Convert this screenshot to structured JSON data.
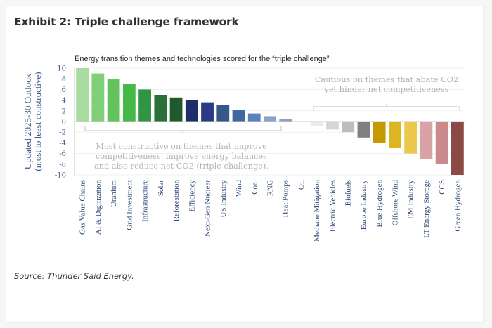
{
  "header": {
    "title": "Exhibit 2: Triple challenge framework"
  },
  "footer": {
    "source": "Source: Thunder Said Energy."
  },
  "chart_data": {
    "type": "bar",
    "title": "Energy transition themes and technologies scored for the “triple challenge”",
    "ylabel_lines": [
      "Updated 2025-30 Outlook",
      "(most to least constructive)"
    ],
    "xlabel": "",
    "ylim": [
      -10,
      10
    ],
    "yticks": [
      "10",
      "8",
      "6",
      "4",
      "2",
      "0",
      "-2",
      "-4",
      "-6",
      "-8",
      "-10"
    ],
    "ytick_values": [
      10,
      8,
      6,
      4,
      2,
      0,
      -2,
      -4,
      -6,
      -8,
      -10
    ],
    "grid": true,
    "categories": [
      "Gas Value Chains",
      "AI & Digitization",
      "Uranium",
      "Grid Investment",
      "Infrastructure",
      "Solar",
      "Reforestation",
      "Efficiency",
      "Next-Gen Nuclear",
      "US Industry",
      "Wind",
      "Coal",
      "RNG",
      "Heat Pumps",
      "Oil",
      "Methane Mitigation",
      "Electric Vehicles",
      "Biofuels",
      "Europe Industry",
      "Blue Hydrogen",
      "Offshore Wind",
      "EM Industry",
      "LT Energy Storage",
      "CCS",
      "Green Hydrogen"
    ],
    "values": [
      10,
      9,
      8,
      7,
      6,
      5,
      4.5,
      4,
      3.6,
      3.1,
      2.1,
      1.5,
      1,
      0.5,
      0,
      -0.8,
      -1.5,
      -2,
      -3,
      -4,
      -5,
      -6,
      -7,
      -8,
      -10
    ],
    "colors": [
      "#a8dca0",
      "#7fcf78",
      "#63c45e",
      "#45b847",
      "#329445",
      "#2a7038",
      "#1f5a2d",
      "#1f2d6b",
      "#2a3a85",
      "#355888",
      "#3f67a0",
      "#5a80bd",
      "#8aa3c9",
      "#8f9fbd",
      "#a0a0a0",
      "#ececec",
      "#d6d6d6",
      "#bdbdbd",
      "#808080",
      "#c49a00",
      "#ddb520",
      "#ecc94b",
      "#d9a3a6",
      "#cb8b8c",
      "#8c4a45"
    ],
    "annotations": {
      "positive": [
        "Most constructive on themes that improve",
        "competitiveness, improve energy balances",
        "and also reduce net CO2 (triple challenge)."
      ],
      "negative": [
        "Cautious on themes that abate CO2",
        "yet hinder net competitiveness"
      ]
    }
  }
}
